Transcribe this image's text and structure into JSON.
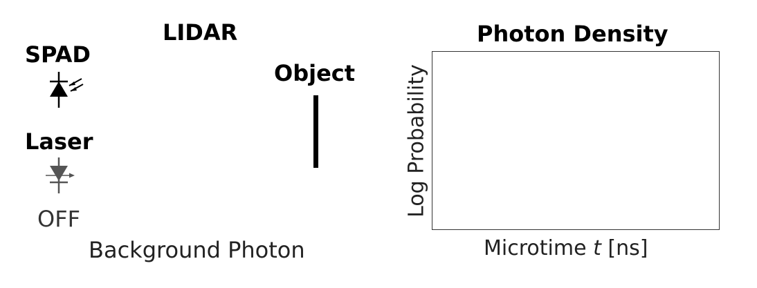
{
  "lidar": {
    "title": "LIDAR",
    "spad_label": "SPAD",
    "laser_label": "Laser",
    "laser_status": "OFF",
    "object_label": "Object",
    "background_label": "Background Photon"
  },
  "plot": {
    "title": "Photon Density",
    "ylabel": "Log Probability",
    "xlabel_prefix": "Microtime ",
    "xlabel_var": "t",
    "xlabel_unit": " [ns]"
  },
  "colors": {
    "spad_icon": "#000000",
    "laser_icon_off": "#555555",
    "object": "#000000"
  },
  "icons": {
    "spad": "photodiode-icon",
    "laser": "laser-diode-icon"
  }
}
